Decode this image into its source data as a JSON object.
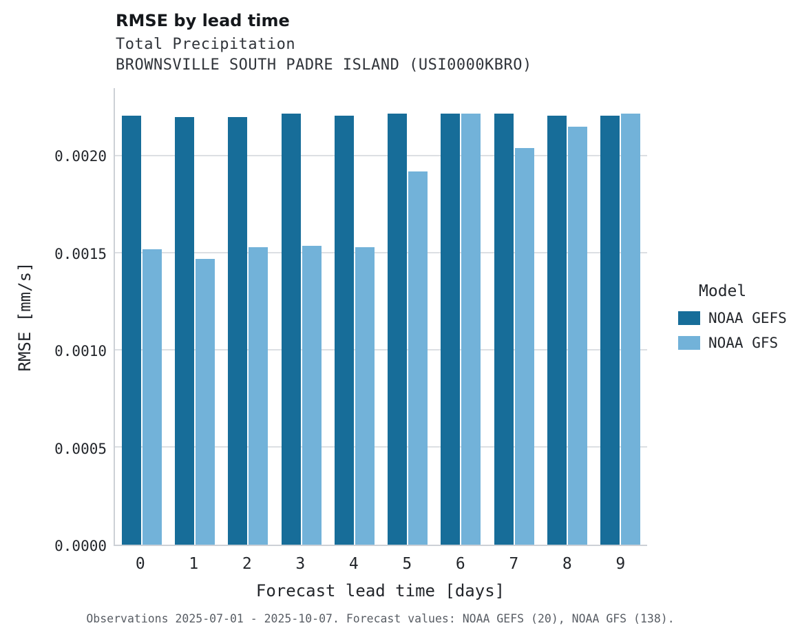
{
  "header": {
    "title": "RMSE by lead time",
    "subtitle": "Total Precipitation",
    "subtitle2": "BROWNSVILLE SOUTH PADRE ISLAND (USI0000KBRO)"
  },
  "caption": "Observations 2025-07-01 - 2025-10-07. Forecast values: NOAA GEFS (20), NOAA GFS (138).",
  "legend": {
    "title": "Model",
    "entries": [
      {
        "label": "NOAA GEFS",
        "color": "#176d99"
      },
      {
        "label": "NOAA GFS",
        "color": "#72b2d9"
      }
    ]
  },
  "chart_data": {
    "type": "bar",
    "title": "RMSE by lead time",
    "subtitle": "Total Precipitation",
    "station": "BROWNSVILLE SOUTH PADRE ISLAND (USI0000KBRO)",
    "xlabel": "Forecast lead time [days]",
    "ylabel": "RMSE [mm/s]",
    "categories": [
      "0",
      "1",
      "2",
      "3",
      "4",
      "5",
      "6",
      "7",
      "8",
      "9"
    ],
    "series": [
      {
        "name": "NOAA GEFS",
        "color": "#176d99",
        "values": [
          0.00221,
          0.0022,
          0.0022,
          0.00222,
          0.00221,
          0.00222,
          0.00222,
          0.00222,
          0.00221,
          0.00221
        ]
      },
      {
        "name": "NOAA GFS",
        "color": "#72b2d9",
        "values": [
          0.00152,
          0.00147,
          0.00153,
          0.00154,
          0.00153,
          0.00192,
          0.00222,
          0.00204,
          0.00215,
          0.00222
        ]
      }
    ],
    "ylim": [
      0,
      0.00235
    ],
    "yticks": [
      0.0,
      0.0005,
      0.001,
      0.0015,
      0.002
    ],
    "ytick_labels": [
      "0.0000",
      "0.0005",
      "0.0010",
      "0.0015",
      "0.0020"
    ],
    "grid": true,
    "legend_position": "right",
    "caption": "Observations 2025-07-01 - 2025-10-07. Forecast values: NOAA GEFS (20), NOAA GFS (138)."
  }
}
